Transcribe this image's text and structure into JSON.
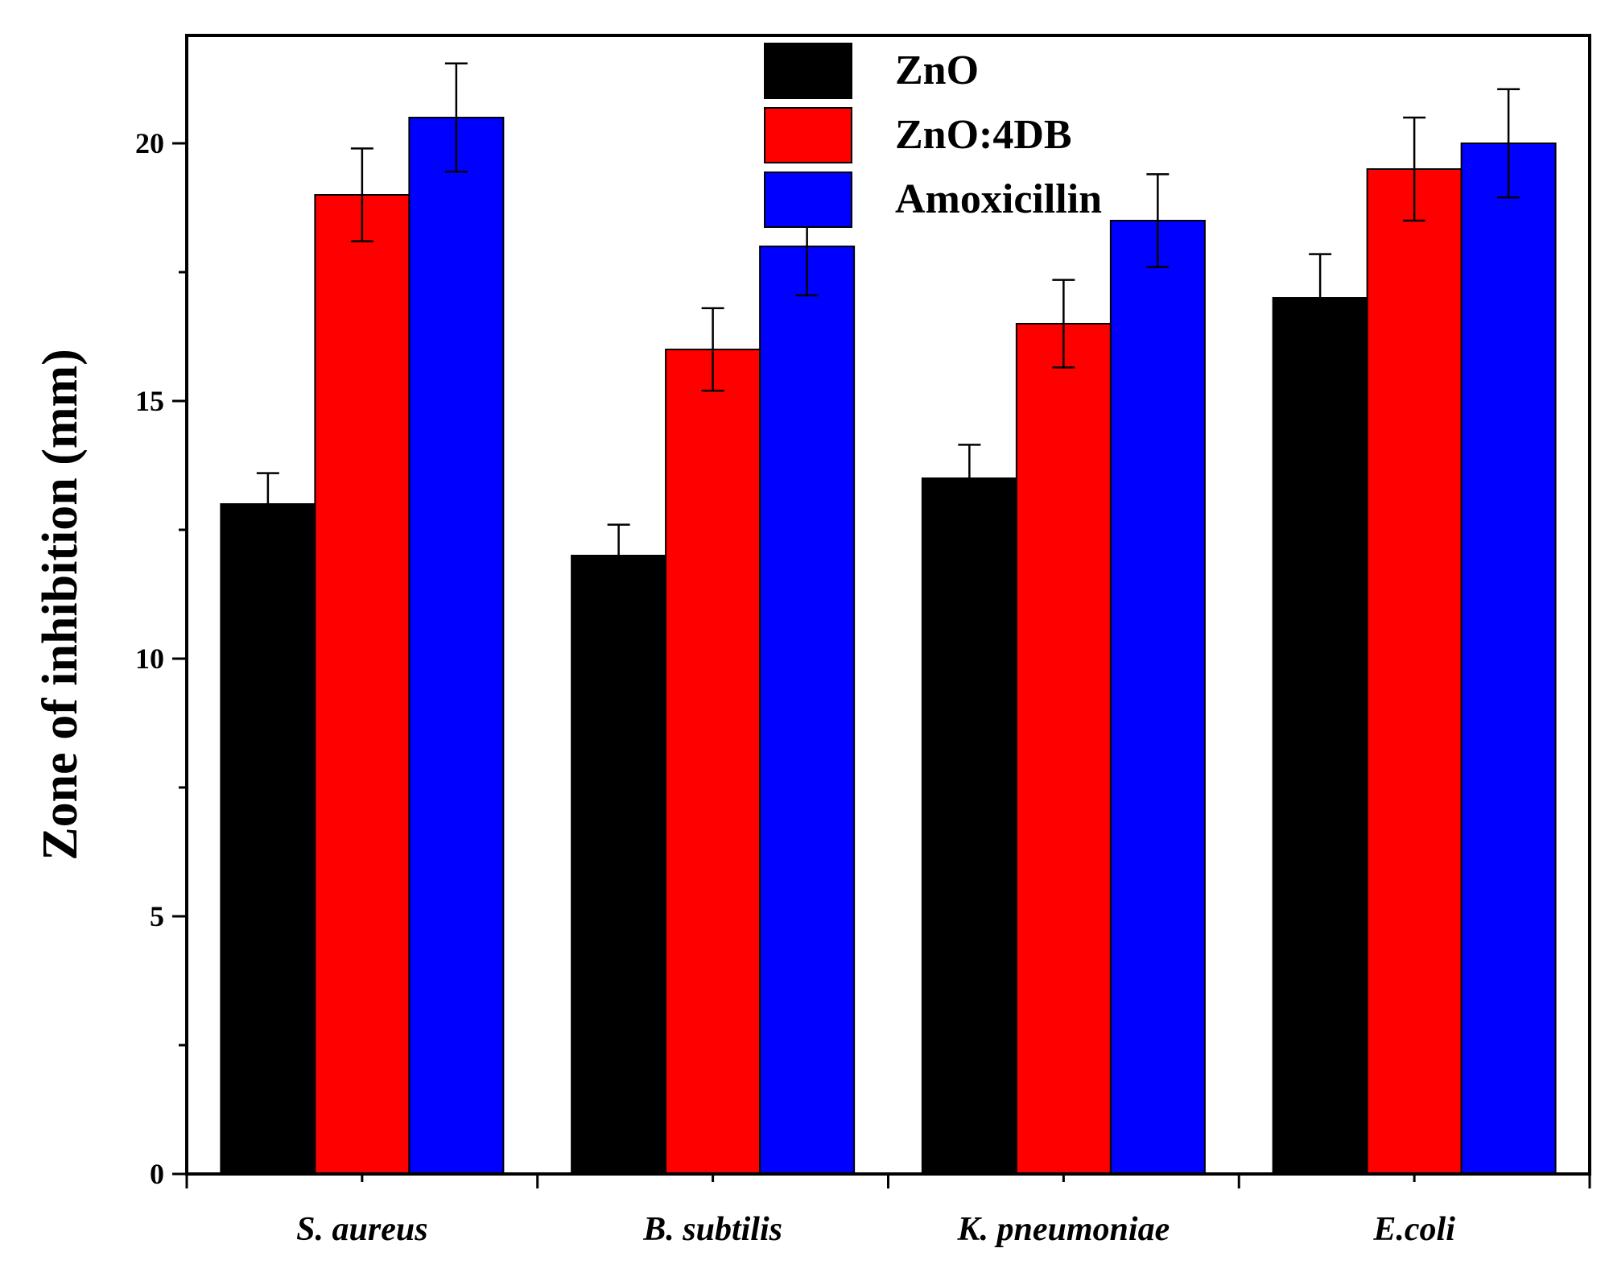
{
  "chart_data": {
    "type": "bar",
    "title": "",
    "xlabel": "",
    "ylabel": "Zone of inhibition  (mm)",
    "ylim": [
      0,
      22
    ],
    "yticks": [
      0,
      5,
      10,
      15,
      20
    ],
    "categories": [
      "S. aureus",
      "B. subtilis",
      "K. pneumoniae",
      "E.coli"
    ],
    "series": [
      {
        "name": "ZnO",
        "color": "#000000",
        "values": [
          13.0,
          12.0,
          13.5,
          17.0
        ],
        "errors": [
          0.6,
          0.6,
          0.65,
          0.85
        ]
      },
      {
        "name": "ZnO:4DB",
        "color": "#ff0000",
        "values": [
          19.0,
          16.0,
          16.5,
          19.5
        ],
        "errors": [
          0.9,
          0.8,
          0.85,
          1.0
        ]
      },
      {
        "name": "Amoxicillin",
        "color": "#0000ff",
        "values": [
          20.5,
          18.0,
          18.5,
          20.0
        ],
        "errors": [
          1.05,
          0.95,
          0.9,
          1.05
        ]
      }
    ],
    "legend_position": "top-center"
  }
}
